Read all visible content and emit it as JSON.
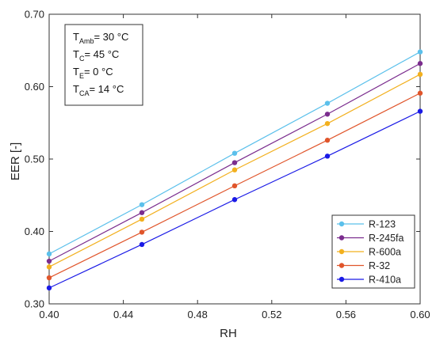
{
  "chart_data": {
    "type": "line",
    "xlabel": "RH",
    "ylabel": "EER [-]",
    "xlim": [
      0.4,
      0.6
    ],
    "ylim": [
      0.3,
      0.7
    ],
    "xticks": [
      "0.40",
      "0.44",
      "0.48",
      "0.52",
      "0.56",
      "0.60"
    ],
    "yticks": [
      "0.30",
      "0.40",
      "0.50",
      "0.60",
      "0.70"
    ],
    "x": [
      0.4,
      0.45,
      0.5,
      0.55,
      0.6
    ],
    "grid": false,
    "legend_position": "bottom-right",
    "series": [
      {
        "name": "R-123",
        "color": "#5BC0EB",
        "values": [
          0.369,
          0.437,
          0.508,
          0.577,
          0.648
        ]
      },
      {
        "name": "R-245fa",
        "color": "#7B2D8E",
        "values": [
          0.359,
          0.426,
          0.495,
          0.562,
          0.632
        ]
      },
      {
        "name": "R-600a",
        "color": "#F2B01E",
        "values": [
          0.351,
          0.417,
          0.485,
          0.549,
          0.617
        ]
      },
      {
        "name": "R-32",
        "color": "#E0552B",
        "values": [
          0.336,
          0.399,
          0.463,
          0.526,
          0.591
        ]
      },
      {
        "name": "R-410a",
        "color": "#1A1AE6",
        "values": [
          0.322,
          0.382,
          0.444,
          0.504,
          0.566
        ]
      }
    ],
    "annotation": [
      {
        "main": "T",
        "sub": "Amb",
        "rest": "= 30 °C"
      },
      {
        "main": "T",
        "sub": "C",
        "rest": "= 45 °C"
      },
      {
        "main": "T",
        "sub": "E",
        "rest": "= 0 °C"
      },
      {
        "main": "T",
        "sub": "CA",
        "rest": "= 14 °C"
      }
    ]
  }
}
